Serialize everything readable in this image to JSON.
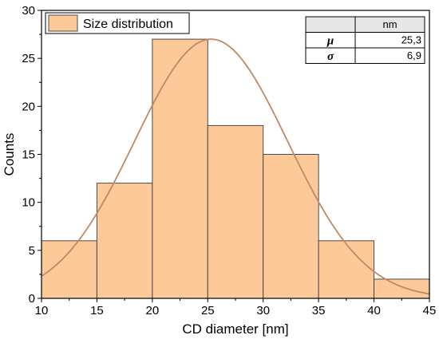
{
  "chart_data": {
    "type": "bar",
    "subtype": "histogram",
    "bins": [
      {
        "x0": 10,
        "x1": 15,
        "count": 6
      },
      {
        "x0": 15,
        "x1": 20,
        "count": 12
      },
      {
        "x0": 20,
        "x1": 25,
        "count": 27
      },
      {
        "x0": 25,
        "x1": 30,
        "count": 18
      },
      {
        "x0": 30,
        "x1": 35,
        "count": 15
      },
      {
        "x0": 35,
        "x1": 40,
        "count": 6
      },
      {
        "x0": 40,
        "x1": 45,
        "count": 2
      }
    ],
    "fit": {
      "type": "normal",
      "mu": 25.3,
      "sigma": 6.9,
      "peak": 27
    },
    "xlabel": "CD diameter [nm]",
    "ylabel": "Counts",
    "xlim": [
      10,
      45
    ],
    "ylim": [
      0,
      30
    ],
    "xticks": [
      "10",
      "15",
      "20",
      "25",
      "30",
      "35",
      "40",
      "45"
    ],
    "yticks": [
      "0",
      "5",
      "10",
      "15",
      "20",
      "25",
      "30"
    ],
    "grid": false,
    "legend": {
      "placement": "top-left",
      "entries": [
        "Size distribution"
      ]
    },
    "colors": {
      "bar_fill": "#fdc998",
      "bar_stroke": "#4a4a4a",
      "fit_line": "#c08864",
      "header_bg": "#e6e6e6"
    }
  },
  "stats_table": {
    "header": "nm",
    "rows": [
      {
        "symbol": "μ",
        "value": "25,3"
      },
      {
        "symbol": "σ",
        "value": "6,9"
      }
    ]
  }
}
